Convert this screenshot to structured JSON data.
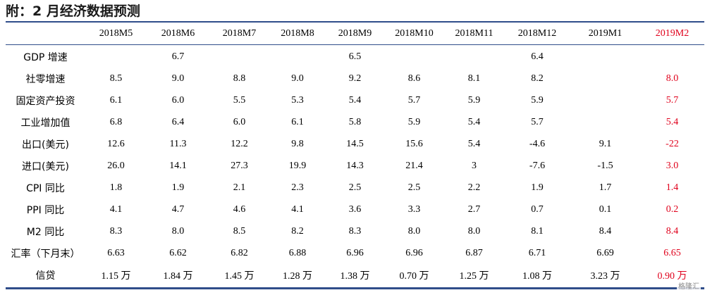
{
  "title": "附：2 月经济数据预测",
  "columns": [
    "2018M5",
    "2018M6",
    "2018M7",
    "2018M8",
    "2018M9",
    "2018M10",
    "2018M11",
    "2018M12",
    "2019M1",
    "2019M2"
  ],
  "highlight_color": "#e0001b",
  "rule_color": "#2f4d8a",
  "rows": [
    {
      "label": "GDP 增速",
      "values": [
        "",
        "6.7",
        "",
        "",
        "6.5",
        "",
        "",
        "6.4",
        "",
        ""
      ]
    },
    {
      "label": "社零增速",
      "values": [
        "8.5",
        "9.0",
        "8.8",
        "9.0",
        "9.2",
        "8.6",
        "8.1",
        "8.2",
        "",
        "8.0"
      ]
    },
    {
      "label": "固定资产投资",
      "values": [
        "6.1",
        "6.0",
        "5.5",
        "5.3",
        "5.4",
        "5.7",
        "5.9",
        "5.9",
        "",
        "5.7"
      ]
    },
    {
      "label": "工业增加值",
      "values": [
        "6.8",
        "6.4",
        "6.0",
        "6.1",
        "5.8",
        "5.9",
        "5.4",
        "5.7",
        "",
        "5.4"
      ]
    },
    {
      "label": "出口(美元)",
      "values": [
        "12.6",
        "11.3",
        "12.2",
        "9.8",
        "14.5",
        "15.6",
        "5.4",
        "-4.6",
        "9.1",
        "-22"
      ]
    },
    {
      "label": "进口(美元)",
      "values": [
        "26.0",
        "14.1",
        "27.3",
        "19.9",
        "14.3",
        "21.4",
        "3",
        "-7.6",
        "-1.5",
        "3.0"
      ]
    },
    {
      "label": "CPI 同比",
      "values": [
        "1.8",
        "1.9",
        "2.1",
        "2.3",
        "2.5",
        "2.5",
        "2.2",
        "1.9",
        "1.7",
        "1.4"
      ]
    },
    {
      "label": "PPI 同比",
      "values": [
        "4.1",
        "4.7",
        "4.6",
        "4.1",
        "3.6",
        "3.3",
        "2.7",
        "0.7",
        "0.1",
        "0.2"
      ]
    },
    {
      "label": "M2 同比",
      "values": [
        "8.3",
        "8.0",
        "8.5",
        "8.2",
        "8.3",
        "8.0",
        "8.0",
        "8.1",
        "8.4",
        "8.4"
      ]
    },
    {
      "label": "汇率（下月末）",
      "values": [
        "6.63",
        "6.62",
        "6.82",
        "6.88",
        "6.96",
        "6.96",
        "6.87",
        "6.71",
        "6.69",
        "6.65"
      ]
    },
    {
      "label": "信贷",
      "values": [
        "1.15 万",
        "1.84 万",
        "1.45 万",
        "1.28 万",
        "1.38 万",
        "0.70 万",
        "1.25 万",
        "1.08 万",
        "3.23 万",
        "0.90 万"
      ]
    }
  ],
  "watermark": "格隆汇"
}
